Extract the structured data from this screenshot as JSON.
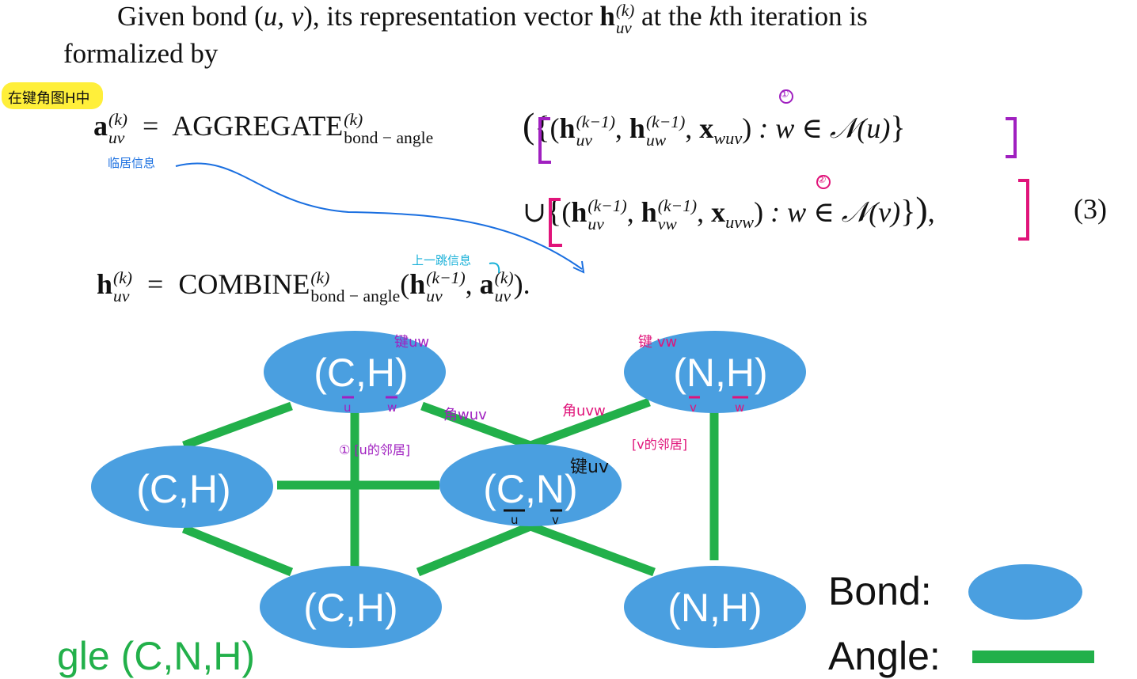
{
  "paragraph": {
    "line1_prefix": "Given bond (",
    "line1_uv": "u, v",
    "line1_mid": "), its representation vector ",
    "line1_h": "h",
    "line1_sup": "(k)",
    "line1_sub": "uv",
    "line1_suffix": " at the ",
    "line1_k": "k",
    "line1_end": "th iteration is",
    "line2": "formalized by"
  },
  "equation": {
    "a_lhs": "a",
    "k": "(k)",
    "km1": "(k−1)",
    "uv": "uv",
    "uw": "uw",
    "vw": "vw",
    "wuv": "wuv",
    "uvw": "uvw",
    "eq_sign": "=",
    "aggregate": "AGGREGATE",
    "combine": "COMBINE",
    "bond_angle": "bond − angle",
    "w_in_Nu": ": w ∈ 𝒩(u)",
    "w_in_Nv": ": w ∈ 𝒩(v)",
    "number": "(3)",
    "h": "h",
    "x": "x",
    "union": "∪"
  },
  "annotations": {
    "yellow_note": "在键角图H中",
    "blue_note": "临居信息",
    "cyan_note": "上一跳信息",
    "circle1": "①",
    "circle2": "②",
    "bond_uw": "键uw",
    "bond_vw": "键 vw",
    "angle_wuv": "角wuv",
    "angle_uvw": "角uvw",
    "neighbor_u": "① [u的邻居]",
    "neighbor_v": "[v的邻居]",
    "bond_uv": "键uv",
    "under_u": "u",
    "under_w": "w",
    "under_v": "v"
  },
  "diagram": {
    "nodes": [
      {
        "id": "n1",
        "label": "(C,H)"
      },
      {
        "id": "n2",
        "label": "(N,H)"
      },
      {
        "id": "n3",
        "label": "(C,H)"
      },
      {
        "id": "n4",
        "label": "(C,N)"
      },
      {
        "id": "n5",
        "label": "(C,H)"
      },
      {
        "id": "n6",
        "label": "(N,H)"
      }
    ],
    "legend": {
      "bond_label": "Bond:",
      "angle_label": "Angle:"
    },
    "cut_label": "gle (C,N,H)",
    "colors": {
      "node_fill": "#4a9fe0",
      "edge": "#22b04a",
      "purple": "#a020c0",
      "magenta": "#e0147a",
      "blue_ink": "#1a6fe0",
      "cyan_ink": "#18b0d8",
      "yellow": "#ffef3a",
      "cut_text": "#22b04a"
    }
  }
}
